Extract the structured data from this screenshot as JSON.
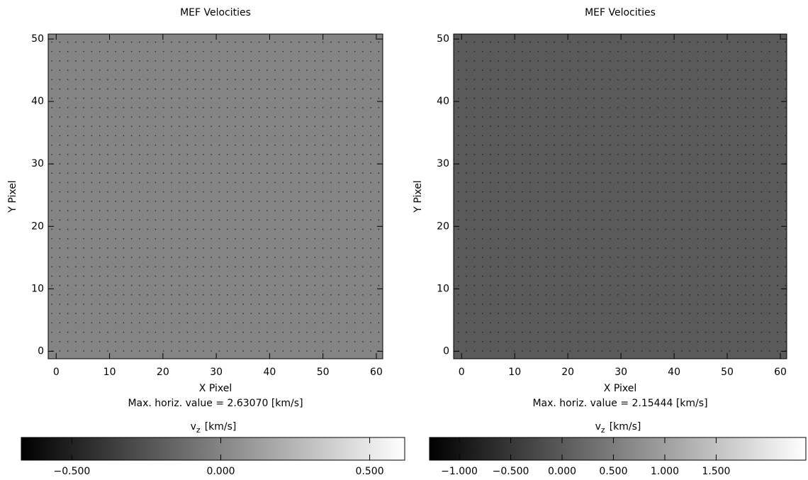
{
  "chart_data": [
    {
      "type": "vector-field",
      "title": "MEF Velocities",
      "x_label": "X Pixel",
      "y_label": "Y Pixel",
      "xlim": [
        -1.5,
        61.2
      ],
      "ylim": [
        -1.2,
        50.8
      ],
      "xticks": [
        0,
        10,
        20,
        30,
        40,
        50,
        60
      ],
      "yticks": [
        0,
        10,
        20,
        30,
        40,
        50
      ],
      "annotation": "Max. horiz. value = 2.63070 [km/s]",
      "colorbar_symbol": "v",
      "colorbar_subscript": "z",
      "colorbar_unit": "[km/s]",
      "clim": [
        -0.67,
        0.62
      ],
      "colorbar_ticks": [
        {
          "value": -0.5,
          "label": "−0.500"
        },
        {
          "value": 0,
          "label": "0.000"
        },
        {
          "value": 0.5,
          "label": "0.500"
        }
      ]
    },
    {
      "type": "vector-field",
      "title": "MEF Velocities",
      "x_label": "X Pixel",
      "y_label": "Y Pixel",
      "xlim": [
        -1.5,
        61.2
      ],
      "ylim": [
        -1.2,
        50.8
      ],
      "xticks": [
        0,
        10,
        20,
        30,
        40,
        50,
        60
      ],
      "yticks": [
        0,
        10,
        20,
        30,
        40,
        50
      ],
      "annotation": "Max. horiz. value = 2.15444 [km/s]",
      "colorbar_symbol": "v",
      "colorbar_subscript": "z",
      "colorbar_unit": "[km/s]",
      "clim": [
        -1.29,
        2.38
      ],
      "colorbar_ticks": [
        {
          "value": -1,
          "label": "−1.000"
        },
        {
          "value": -0.5,
          "label": "−0.500"
        },
        {
          "value": 0,
          "label": "0.000"
        },
        {
          "value": 0.5,
          "label": "0.500"
        },
        {
          "value": 1,
          "label": "1.000"
        },
        {
          "value": 1.5,
          "label": "1.500"
        }
      ]
    }
  ]
}
